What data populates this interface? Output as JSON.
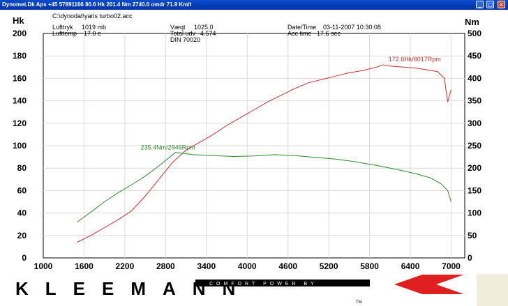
{
  "window": {
    "title": "Dynomet.Dk Aps  +45 57891166  80.6 Hk 201.4 Nm 2740.0 omdr 71.9 Km/t",
    "buttons": [
      "_",
      "□",
      "×"
    ]
  },
  "info": {
    "file_path": "C:\\dynodat\\yaris turbo02.acc",
    "lufttryk_label": "Lufttryk",
    "lufttryk_value": "1019 mb",
    "lufttemp_label": "Lufttemp",
    "lufttemp_value": "17.0 c",
    "vaegt_label": "Væqt",
    "vaegt_value": "1025.0",
    "total_udv_label": "Total udv",
    "total_udv_value": "4.574",
    "din": "DIN 70020",
    "datetime_label": "Date/Time",
    "datetime_value": "03-11-2007 10:30:08",
    "acc_time_label": "Acc time",
    "acc_time_value": "17.6 sec"
  },
  "chart_data": {
    "type": "line",
    "left_axis_unit": "Hk",
    "right_axis_unit": "Nm",
    "x_ticks": [
      1000,
      1600,
      2200,
      2800,
      3400,
      4000,
      4600,
      5200,
      5800,
      6400,
      7000
    ],
    "left_ticks": [
      0,
      20,
      40,
      60,
      80,
      100,
      120,
      140,
      160,
      180,
      200
    ],
    "right_ticks": [
      0,
      50,
      100,
      150,
      200,
      250,
      300,
      350,
      400,
      450,
      500
    ],
    "xlim": [
      1000,
      7200
    ],
    "ylim_left": [
      0,
      200
    ],
    "ylim_right": [
      0,
      500
    ],
    "grid": true,
    "series": [
      {
        "axis": "left",
        "color": "#cc2a2a",
        "x": [
          1500,
          1700,
          1900,
          2100,
          2300,
          2500,
          2700,
          2900,
          3100,
          3300,
          3500,
          3700,
          3900,
          4100,
          4300,
          4500,
          4700,
          4900,
          5100,
          5300,
          5500,
          5700,
          5900,
          6000,
          6100,
          6300,
          6500,
          6700,
          6800,
          6900,
          6950,
          7000
        ],
        "y": [
          14,
          20,
          27,
          34,
          42,
          55,
          70,
          85,
          96,
          103,
          110,
          118,
          125,
          132,
          139,
          145,
          151,
          156,
          159,
          162,
          165,
          167,
          170,
          172,
          171,
          170,
          169,
          167,
          166,
          160,
          139,
          150
        ]
      },
      {
        "axis": "right",
        "color": "#2a8a2a",
        "x": [
          1500,
          1700,
          1900,
          2100,
          2300,
          2500,
          2700,
          2946,
          3200,
          3500,
          3800,
          4100,
          4400,
          4700,
          5000,
          5300,
          5600,
          5900,
          6200,
          6500,
          6700,
          6850,
          6950,
          7000
        ],
        "y": [
          80,
          102,
          125,
          145,
          163,
          182,
          205,
          235,
          230,
          228,
          226,
          227,
          230,
          228,
          224,
          220,
          214,
          206,
          197,
          187,
          178,
          165,
          150,
          125
        ]
      }
    ],
    "annotations": [
      {
        "text": "172.6Hk/6017Rpm",
        "color": "#cc2a2a",
        "x": 6017,
        "y": 172.6,
        "axis": "left"
      },
      {
        "text": "235.4Nm/2946Rpm",
        "color": "#2a8a2a",
        "x": 2946,
        "y": 235.4,
        "axis": "right"
      }
    ]
  },
  "branding": {
    "logo_text": "KLEEMANN",
    "tagline": "COMFORT POWER BY",
    "tm": "TM",
    "accent_color": "#e02020"
  }
}
